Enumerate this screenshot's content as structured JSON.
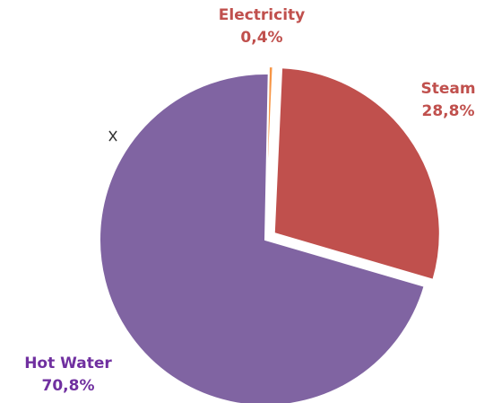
{
  "chart_data": {
    "type": "pie",
    "title": "",
    "slices": [
      {
        "name": "Electricity",
        "value": 0.4,
        "value_label": "0,4%",
        "color": "#F79646",
        "label_color": "#C0504D"
      },
      {
        "name": "Steam",
        "value": 28.8,
        "value_label": "28,8%",
        "color": "#C0504D",
        "label_color": "#C0504D"
      },
      {
        "name": "Hot Water",
        "value": 70.8,
        "value_label": "70,8%",
        "color": "#8064A2",
        "label_color": "#7030A0"
      }
    ],
    "legend": "none",
    "exploded": true
  }
}
